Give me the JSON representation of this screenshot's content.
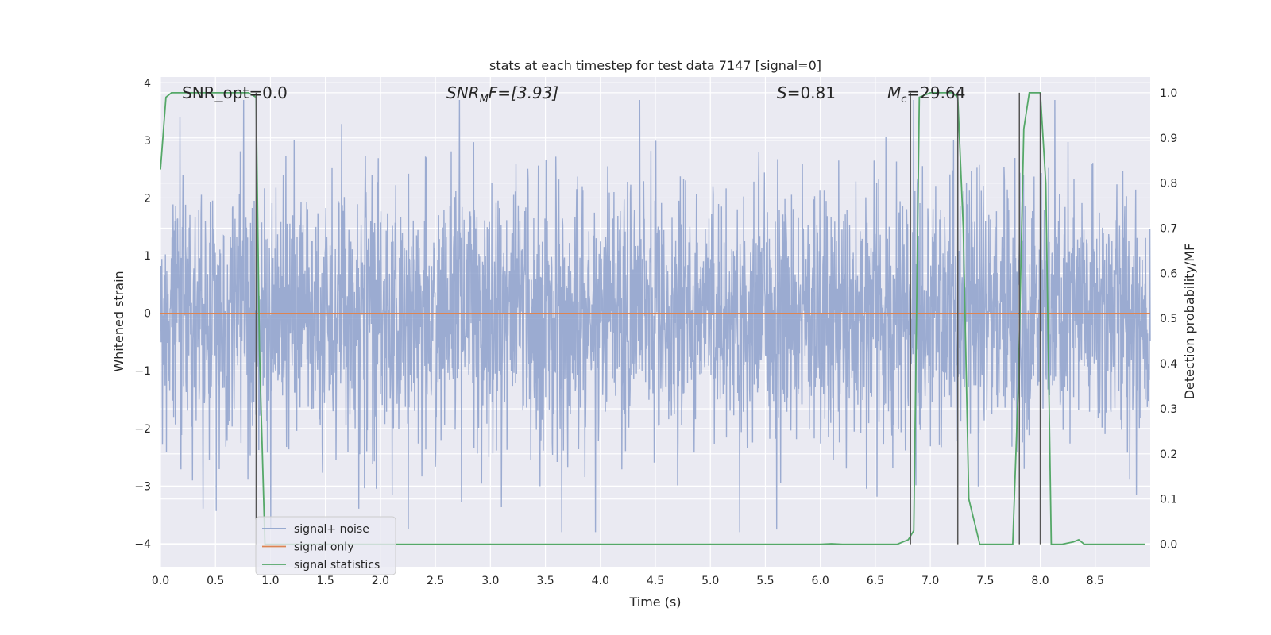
{
  "chart_data": {
    "type": "line",
    "title": "stats at each timestep for test data 7147 [signal=0]",
    "xlabel": "Time (s)",
    "ylabel": "Whitened strain",
    "y2label": "Detection probability/MF",
    "xlim": [
      0.0,
      9.0
    ],
    "ylim": [
      -4.4,
      4.1
    ],
    "y2lim": [
      -0.05,
      1.035
    ],
    "xticks": [
      "0.0",
      "0.5",
      "1.0",
      "1.5",
      "2.0",
      "2.5",
      "3.0",
      "3.5",
      "4.0",
      "4.5",
      "5.0",
      "5.5",
      "6.0",
      "6.5",
      "7.0",
      "7.5",
      "8.0",
      "8.5"
    ],
    "xtick_values": [
      0.0,
      0.5,
      1.0,
      1.5,
      2.0,
      2.5,
      3.0,
      3.5,
      4.0,
      4.5,
      5.0,
      5.5,
      6.0,
      6.5,
      7.0,
      7.5,
      8.0,
      8.5
    ],
    "yticks": [
      "−4",
      "−3",
      "−2",
      "−1",
      "0",
      "1",
      "2",
      "3",
      "4"
    ],
    "ytick_values": [
      -4,
      -3,
      -2,
      -1,
      0,
      1,
      2,
      3,
      4
    ],
    "y2ticks": [
      "0.0",
      "0.1",
      "0.2",
      "0.3",
      "0.4",
      "0.5",
      "0.6",
      "0.7",
      "0.8",
      "0.9",
      "1.0"
    ],
    "y2tick_values": [
      0.0,
      0.1,
      0.2,
      0.3,
      0.4,
      0.5,
      0.6,
      0.7,
      0.8,
      0.9,
      1.0
    ],
    "grid": true,
    "legend_position": "lower-left",
    "annotations": {
      "snr_opt": "SNR_opt=0.0",
      "snr_mf_base": "SNR",
      "snr_mf_sub": "M",
      "snr_mf_rest": "F=[3.93]",
      "s_var": "S",
      "s_rest": "=0.81",
      "mc_base": "M",
      "mc_sub": "c",
      "mc_rest": "=29.64"
    },
    "series": [
      {
        "name": "signal+ noise",
        "color": "#8da0cb",
        "axis": "left",
        "description_values": "whitened noisy strain, dense oscillation roughly between -2.5 and 2.5 with spikes to about ±3.7",
        "envelope": {
          "typical_low": -2.3,
          "typical_high": 2.3,
          "peak_low": -3.8,
          "peak_high": 3.7
        }
      },
      {
        "name": "signal only",
        "color": "#dd8452",
        "axis": "left",
        "x": [
          0.0,
          9.0
        ],
        "y": [
          0.0,
          0.0
        ]
      },
      {
        "name": "signal statistics",
        "color": "#55a868",
        "axis": "right",
        "x": [
          0.0,
          0.05,
          0.1,
          0.15,
          0.2,
          0.4,
          0.6,
          0.8,
          0.87,
          0.9,
          0.95,
          1.0,
          2.0,
          3.0,
          4.0,
          5.0,
          6.0,
          6.1,
          6.2,
          6.5,
          6.7,
          6.8,
          6.85,
          6.9,
          7.0,
          7.1,
          7.2,
          7.25,
          7.3,
          7.35,
          7.4,
          7.45,
          7.5,
          7.6,
          7.7,
          7.75,
          7.8,
          7.85,
          7.9,
          8.0,
          8.05,
          8.1,
          8.15,
          8.2,
          8.3,
          8.35,
          8.4,
          8.5,
          8.7,
          8.95
        ],
        "y": [
          0.83,
          0.99,
          1.0,
          1.0,
          1.0,
          1.0,
          1.0,
          1.0,
          0.99,
          0.43,
          0.0,
          0.0,
          0.0,
          0.0,
          0.0,
          0.0,
          0.0,
          0.001,
          0.0,
          0.0,
          0.0,
          0.01,
          0.03,
          0.99,
          1.0,
          1.0,
          1.0,
          0.99,
          0.7,
          0.1,
          0.05,
          0.0,
          0.0,
          0.0,
          0.0,
          0.0,
          0.35,
          0.92,
          1.0,
          1.0,
          0.8,
          0.0,
          0.0,
          0.0,
          0.005,
          0.01,
          0.0,
          0.0,
          0.0,
          0.0
        ]
      }
    ],
    "vlines": {
      "color": "#555555",
      "x": [
        0.87,
        6.82,
        7.25,
        7.81,
        8.0
      ],
      "top": [
        1.0,
        1.0,
        1.0,
        1.0,
        1.0
      ],
      "bottom": [
        0.0,
        0.0,
        0.0,
        0.0,
        0.0
      ]
    },
    "legend": [
      {
        "label": "signal+ noise",
        "color": "#8da0cb"
      },
      {
        "label": "signal only",
        "color": "#dd8452"
      },
      {
        "label": "signal statistics",
        "color": "#55a868"
      }
    ]
  }
}
